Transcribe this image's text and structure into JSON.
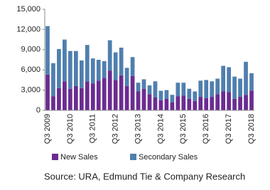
{
  "chart_data": {
    "type": "stacked_bar",
    "source": "Source: URA, Edmund Tie & Company Research",
    "categories": [
      "Q3 2009",
      null,
      null,
      null,
      "Q3 2010",
      null,
      null,
      null,
      "Q3 2011",
      null,
      null,
      null,
      "Q3 2012",
      null,
      null,
      null,
      "Q3 2013",
      null,
      null,
      null,
      "Q3 2014",
      null,
      null,
      null,
      "Q3 2015",
      null,
      null,
      null,
      "Q3 2016",
      null,
      null,
      null,
      "Q3 2017",
      null,
      null,
      null,
      "Q3 2018"
    ],
    "series": [
      {
        "name": "New Sales",
        "color": "#6b2c91",
        "values": [
          5300,
          2100,
          3300,
          4300,
          3200,
          3600,
          3300,
          4300,
          4000,
          4400,
          4800,
          5900,
          4500,
          5200,
          3600,
          5100,
          2800,
          3200,
          2400,
          1900,
          1500,
          1700,
          1200,
          2100,
          2200,
          1700,
          1400,
          2000,
          1800,
          2000,
          2400,
          2800,
          2700,
          1700,
          2000,
          2300,
          2900
        ]
      },
      {
        "name": "Secondary Sales",
        "color": "#4f7fae",
        "values": [
          7200,
          4900,
          5800,
          6200,
          5600,
          5200,
          4100,
          5400,
          3700,
          3100,
          2500,
          4500,
          4100,
          4100,
          2700,
          2800,
          1300,
          1400,
          1300,
          2400,
          1400,
          1300,
          1100,
          2000,
          1900,
          1500,
          1400,
          2400,
          2700,
          2300,
          2300,
          3800,
          3700,
          3300,
          2700,
          4900,
          2600
        ]
      }
    ],
    "ylim": [
      0,
      15000
    ],
    "yticks": [
      0,
      {
        "value": 3000,
        "label": "3,000"
      },
      {
        "value": 6000,
        "label": "6,000"
      },
      {
        "value": 9000,
        "label": "9,000"
      },
      {
        "value": 12000,
        "label": "12,000"
      },
      {
        "value": 15000,
        "label": "15,000"
      }
    ]
  }
}
